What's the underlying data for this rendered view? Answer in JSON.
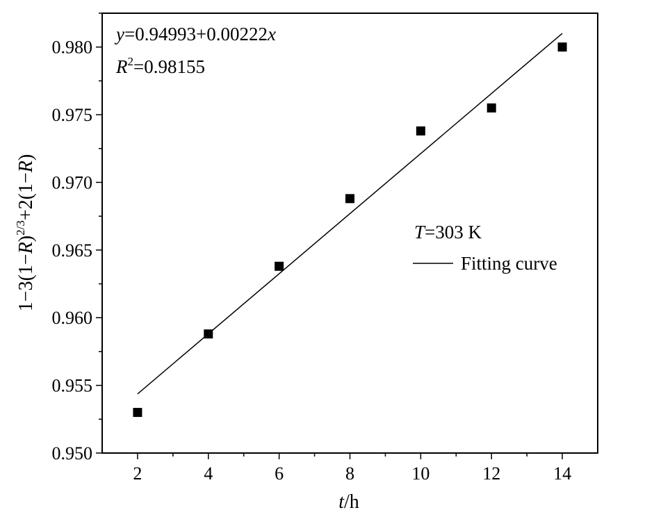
{
  "chart_data": {
    "type": "scatter",
    "x_ticks": [
      2,
      4,
      6,
      8,
      10,
      12,
      14
    ],
    "y_ticks": [
      0.95,
      0.955,
      0.96,
      0.965,
      0.97,
      0.975,
      0.98
    ],
    "x_tick_labels": [
      "2",
      "4",
      "6",
      "8",
      "10",
      "12",
      "14"
    ],
    "y_tick_labels": [
      "0.950",
      "0.955",
      "0.960",
      "0.965",
      "0.970",
      "0.975",
      "0.980"
    ],
    "xlim": [
      1,
      15
    ],
    "ylim": [
      0.95,
      0.9825
    ],
    "xlabel_italic": "t",
    "xlabel_rest": "/h",
    "ylabel": "1−3(1−R)2/3+2(1−R)",
    "ylabel_parts": {
      "a": "1−3(1−",
      "b": "R",
      "c": ")",
      "sup": "2/3",
      "d": "+2(1−",
      "e": "R",
      "f": ")"
    },
    "series": [
      {
        "type": "scatter",
        "marker": "filled-square",
        "color": "#000000",
        "x": [
          2,
          4,
          6,
          8,
          10,
          12,
          14
        ],
        "y": [
          0.953,
          0.9588,
          0.9638,
          0.9688,
          0.9738,
          0.9755,
          0.98
        ]
      },
      {
        "name": "Fitting curve",
        "type": "line",
        "color": "#000000",
        "intercept": 0.94993,
        "slope": 0.00222,
        "x_range": [
          2,
          14
        ]
      }
    ],
    "annotation": {
      "equation": {
        "y": "y",
        "rest": "=0.94993+0.00222",
        "x": "x"
      },
      "r2": {
        "R": "R",
        "sup": "2",
        "rest": "=0.98155"
      }
    },
    "legend": {
      "placement": "right",
      "title": {
        "T": "T",
        "rest": "=303 K"
      },
      "line_label": "Fitting curve"
    },
    "grid": false
  }
}
